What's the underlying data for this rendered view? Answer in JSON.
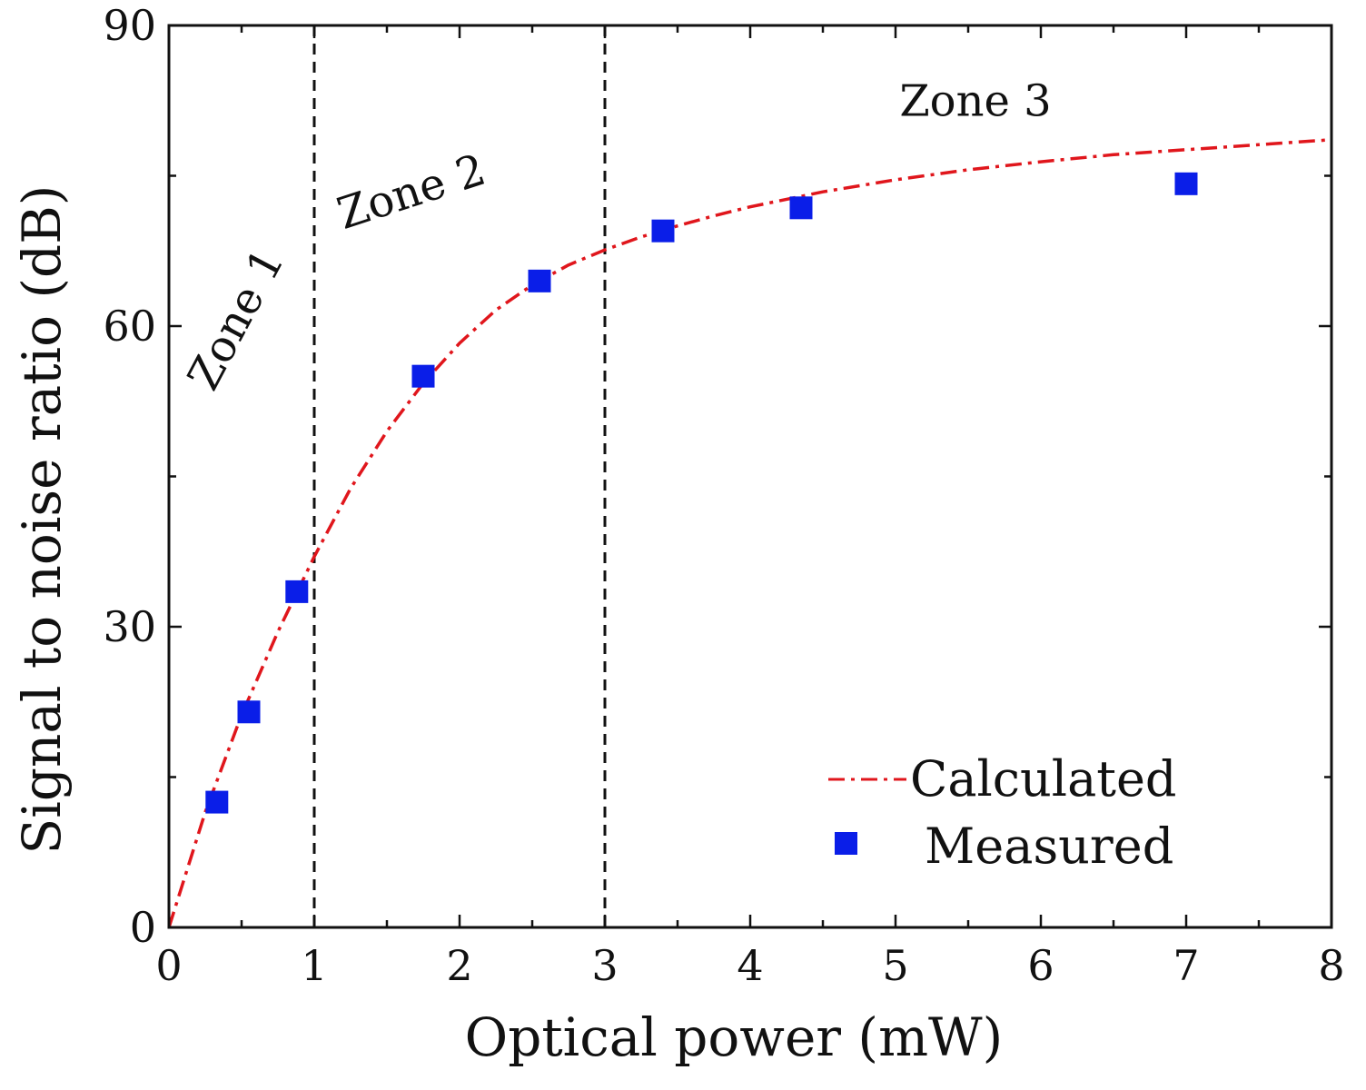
{
  "colors": {
    "axis": "#111111",
    "calculated": "#e0161c",
    "measured": "#0a1ee8",
    "zone_line": "#111111",
    "background": "#ffffff"
  },
  "chart_data": {
    "type": "scatter",
    "title": "",
    "xlabel": "Optical power (mW)",
    "ylabel": "Signal to noise ratio (dB)",
    "xlim": [
      0,
      8
    ],
    "ylim": [
      0,
      90
    ],
    "x_ticks": [
      0,
      1,
      2,
      3,
      4,
      5,
      6,
      7,
      8
    ],
    "x_tick_labels": [
      "0",
      "1",
      "2",
      "3",
      "4",
      "5",
      "6",
      "7",
      "8"
    ],
    "y_ticks": [
      0,
      30,
      60,
      90
    ],
    "y_tick_labels": [
      "0",
      "30",
      "60",
      "90"
    ],
    "x_minor_ticks": [
      0.5,
      1.5,
      2.5,
      3.5,
      4.5,
      5.5,
      6.5,
      7.5
    ],
    "y_minor_ticks": [
      15,
      45,
      75
    ],
    "zone_boundaries": [
      1,
      3
    ],
    "zones": [
      {
        "label": "Zone 1",
        "x": 0.55,
        "y": 60,
        "rotation": -62
      },
      {
        "label": "Zone 2",
        "x": 1.7,
        "y": 72,
        "rotation": -18
      },
      {
        "label": "Zone 3",
        "x": 5.55,
        "y": 81,
        "rotation": 0
      }
    ],
    "series": [
      {
        "name": "Calculated",
        "style": "dash-dot line",
        "x": [
          0,
          0.25,
          0.5,
          0.75,
          1.0,
          1.25,
          1.5,
          1.75,
          2.0,
          2.25,
          2.5,
          2.75,
          3.0,
          3.25,
          3.5,
          3.75,
          4.0,
          4.5,
          5.0,
          5.5,
          6.0,
          6.5,
          7.0,
          7.5,
          8.0
        ],
        "y": [
          0,
          11.5,
          21.2,
          29.5,
          37.0,
          43.8,
          49.5,
          54.3,
          58.3,
          61.6,
          64.1,
          66.1,
          67.6,
          68.9,
          70.0,
          71.0,
          71.9,
          73.4,
          74.6,
          75.6,
          76.4,
          77.1,
          77.6,
          78.1,
          78.6
        ]
      },
      {
        "name": "Measured",
        "style": "square markers",
        "x": [
          0.33,
          0.55,
          0.88,
          1.75,
          2.55,
          3.4,
          4.35,
          7.0
        ],
        "y": [
          12.5,
          21.5,
          33.5,
          55.0,
          64.5,
          69.5,
          71.8,
          74.2
        ]
      }
    ],
    "legend": {
      "position": "bottom-right",
      "entries": [
        "Calculated",
        "Measured"
      ]
    }
  }
}
